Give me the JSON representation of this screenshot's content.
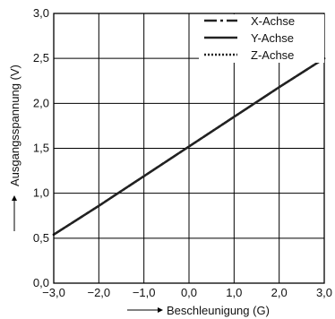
{
  "chart_data": {
    "type": "line",
    "xlabel": "Beschleunigung (G)",
    "ylabel": "Ausgangsspannung (V)",
    "xlim": [
      -3.0,
      3.0
    ],
    "ylim": [
      0.0,
      3.0
    ],
    "x_ticks": [
      -3.0,
      -2.0,
      -1.0,
      0.0,
      1.0,
      2.0,
      3.0
    ],
    "y_ticks": [
      0.0,
      0.5,
      1.0,
      1.5,
      2.0,
      2.5,
      3.0
    ],
    "x_tick_labels": [
      "−3,0",
      "−2,0",
      "−1,0",
      "0,0",
      "1,0",
      "2,0",
      "3,0"
    ],
    "y_tick_labels": [
      "0,0",
      "0,5",
      "1,0",
      "1,5",
      "2,0",
      "2,5",
      "3,0"
    ],
    "grid": true,
    "legend_position": "top-right",
    "series": [
      {
        "name": "X-Achse",
        "style": "dash-dot",
        "x": [
          -3.0,
          -2.0,
          -1.0,
          0.0,
          1.0,
          2.0,
          3.0
        ],
        "y": [
          0.54,
          0.86,
          1.19,
          1.52,
          1.85,
          2.18,
          2.5
        ]
      },
      {
        "name": "Y-Achse",
        "style": "solid",
        "x": [
          -3.0,
          -2.0,
          -1.0,
          0.0,
          1.0,
          2.0,
          3.0
        ],
        "y": [
          0.54,
          0.86,
          1.19,
          1.52,
          1.85,
          2.18,
          2.5
        ]
      },
      {
        "name": "Z-Achse",
        "style": "dotted",
        "x": [
          -3.0,
          -2.0,
          -1.0,
          0.0,
          1.0,
          2.0,
          3.0
        ],
        "y": [
          0.54,
          0.86,
          1.19,
          1.52,
          1.85,
          2.18,
          2.5
        ]
      }
    ],
    "colors": {
      "line": "#222222",
      "grid": "#000000",
      "background": "#ffffff"
    }
  }
}
